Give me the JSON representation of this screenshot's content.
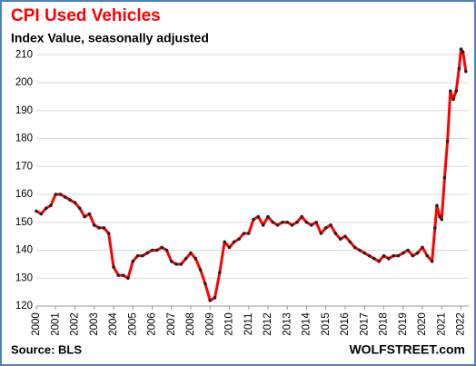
{
  "chart_data": {
    "type": "line",
    "title": "CPI Used Vehicles",
    "subtitle": "Index Value, seasonally adjusted",
    "source": "Source: BLS",
    "brand": "WOLFSTREET.com",
    "x": [
      2000,
      2000.25,
      2000.5,
      2000.75,
      2001,
      2001.25,
      2001.5,
      2001.75,
      2002,
      2002.25,
      2002.5,
      2002.75,
      2003,
      2003.25,
      2003.5,
      2003.75,
      2004,
      2004.25,
      2004.5,
      2004.75,
      2005,
      2005.25,
      2005.5,
      2005.75,
      2006,
      2006.25,
      2006.5,
      2006.75,
      2007,
      2007.25,
      2007.5,
      2007.75,
      2008,
      2008.25,
      2008.5,
      2008.75,
      2009,
      2009.25,
      2009.5,
      2009.75,
      2010,
      2010.25,
      2010.5,
      2010.75,
      2011,
      2011.25,
      2011.5,
      2011.75,
      2012,
      2012.25,
      2012.5,
      2012.75,
      2013,
      2013.25,
      2013.5,
      2013.75,
      2014,
      2014.25,
      2014.5,
      2014.75,
      2015,
      2015.25,
      2015.5,
      2015.75,
      2016,
      2016.25,
      2016.5,
      2016.75,
      2017,
      2017.25,
      2017.5,
      2017.75,
      2018,
      2018.25,
      2018.5,
      2018.75,
      2019,
      2019.25,
      2019.5,
      2019.75,
      2020,
      2020.25,
      2020.5,
      2020.65,
      2020.75,
      2020.9,
      2021,
      2021.15,
      2021.3,
      2021.45,
      2021.6,
      2021.75,
      2021.9,
      2022,
      2022.1,
      2022.25
    ],
    "series": [
      {
        "name": "CPI Used Vehicles",
        "color": "#ff0000",
        "values": [
          154,
          153,
          155,
          156,
          160,
          160,
          159,
          158,
          157,
          155,
          152,
          153,
          149,
          148,
          148,
          146,
          134,
          131,
          131,
          130,
          136,
          138,
          138,
          139,
          140,
          140,
          141,
          140,
          136,
          135,
          135,
          137,
          139,
          137,
          133,
          128,
          122,
          123,
          132,
          143,
          141,
          143,
          144,
          146,
          146,
          151,
          152,
          149,
          152,
          150,
          149,
          150,
          150,
          149,
          150,
          152,
          150,
          149,
          150,
          146,
          148,
          149,
          146,
          144,
          145,
          143,
          141,
          140,
          139,
          138,
          137,
          136,
          138,
          137,
          138,
          138,
          139,
          140,
          138,
          139,
          141,
          138,
          136,
          148,
          156,
          152,
          151,
          166,
          179,
          197,
          194,
          197,
          205,
          212,
          211,
          204
        ]
      }
    ],
    "xlim": [
      2000,
      2022.4
    ],
    "xticks": [
      2000,
      2001,
      2002,
      2003,
      2004,
      2005,
      2006,
      2007,
      2008,
      2009,
      2010,
      2011,
      2012,
      2013,
      2014,
      2015,
      2016,
      2017,
      2018,
      2019,
      2020,
      2021,
      2022
    ],
    "ylim": [
      120,
      213
    ],
    "yticks": [
      120,
      130,
      140,
      150,
      160,
      170,
      180,
      190,
      200,
      210
    ],
    "grid": true
  }
}
